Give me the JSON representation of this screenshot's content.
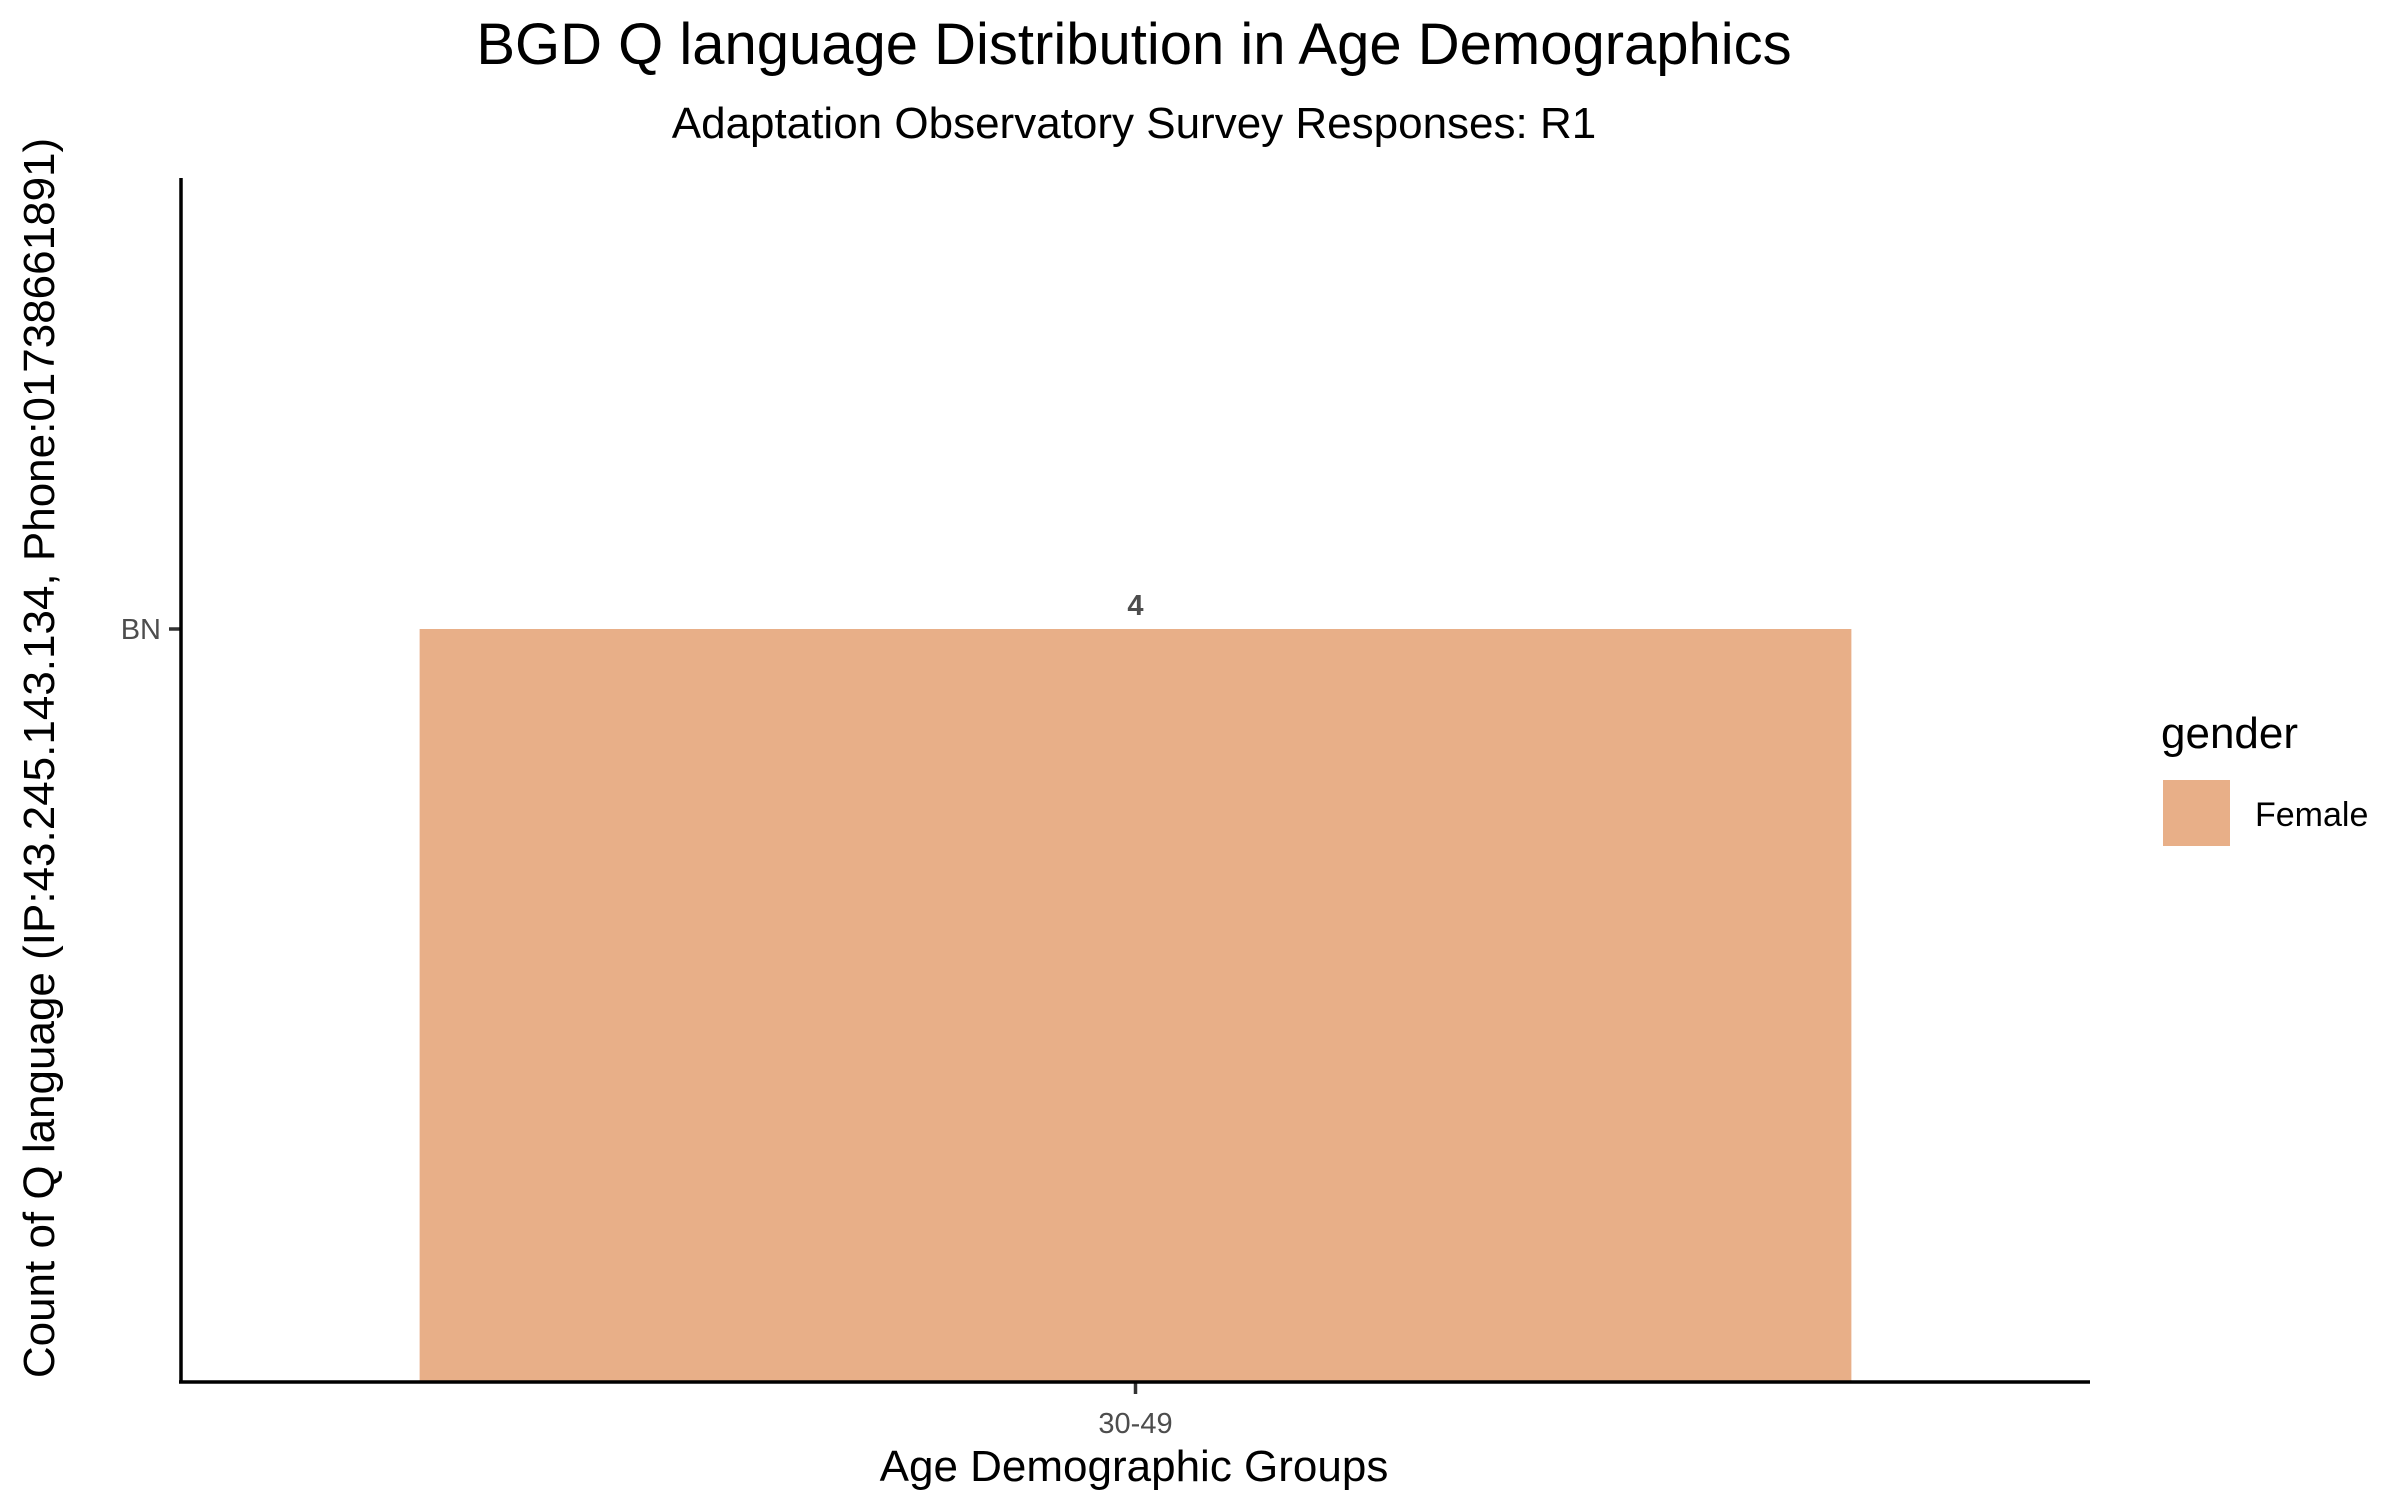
{
  "chart_data": {
    "type": "bar",
    "title": "BGD Q language Distribution in Age Demographics",
    "subtitle": "Adaptation Observatory Survey Responses: R1",
    "xlabel": "Age Demographic Groups",
    "ylabel": "Count of Q language (IP:43.245.143.134, Phone:01738661891)",
    "categories": [
      "30-49"
    ],
    "y_ticks": [
      "BN"
    ],
    "series": [
      {
        "name": "Female",
        "values": [
          4
        ],
        "labels": [
          "4"
        ],
        "color": "#E8AF88"
      }
    ],
    "legend": {
      "title": "gender",
      "entries": [
        "Female"
      ],
      "position": "right"
    },
    "grid": false
  }
}
